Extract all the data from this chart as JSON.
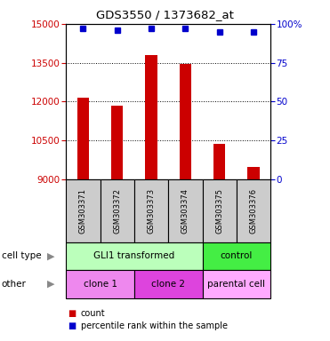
{
  "title": "GDS3550 / 1373682_at",
  "samples": [
    "GSM303371",
    "GSM303372",
    "GSM303373",
    "GSM303374",
    "GSM303375",
    "GSM303376"
  ],
  "counts": [
    12150,
    11850,
    13800,
    13450,
    10350,
    9450
  ],
  "percentile_ranks": [
    97,
    96,
    97,
    97,
    95,
    95
  ],
  "ylim_left": [
    9000,
    15000
  ],
  "yticks_left": [
    9000,
    10500,
    12000,
    13500,
    15000
  ],
  "ylim_right": [
    0,
    100
  ],
  "yticks_right": [
    0,
    25,
    50,
    75,
    100
  ],
  "ytick_right_labels": [
    "0",
    "25",
    "50",
    "75",
    "100%"
  ],
  "bar_color": "#cc0000",
  "dot_color": "#0000cc",
  "bar_width": 0.35,
  "cell_type_row": {
    "label": "cell type",
    "groups": [
      {
        "text": "GLI1 transformed",
        "span": [
          0,
          4
        ],
        "color": "#bbffbb"
      },
      {
        "text": "control",
        "span": [
          4,
          6
        ],
        "color": "#44ee44"
      }
    ]
  },
  "other_row": {
    "label": "other",
    "groups": [
      {
        "text": "clone 1",
        "span": [
          0,
          2
        ],
        "color": "#ee88ee"
      },
      {
        "text": "clone 2",
        "span": [
          2,
          4
        ],
        "color": "#dd44dd"
      },
      {
        "text": "parental cell",
        "span": [
          4,
          6
        ],
        "color": "#ffaaff"
      }
    ]
  },
  "legend_count_label": "count",
  "legend_percentile_label": "percentile rank within the sample",
  "background_color": "#ffffff",
  "plot_bg_color": "#ffffff",
  "sample_box_color": "#cccccc"
}
